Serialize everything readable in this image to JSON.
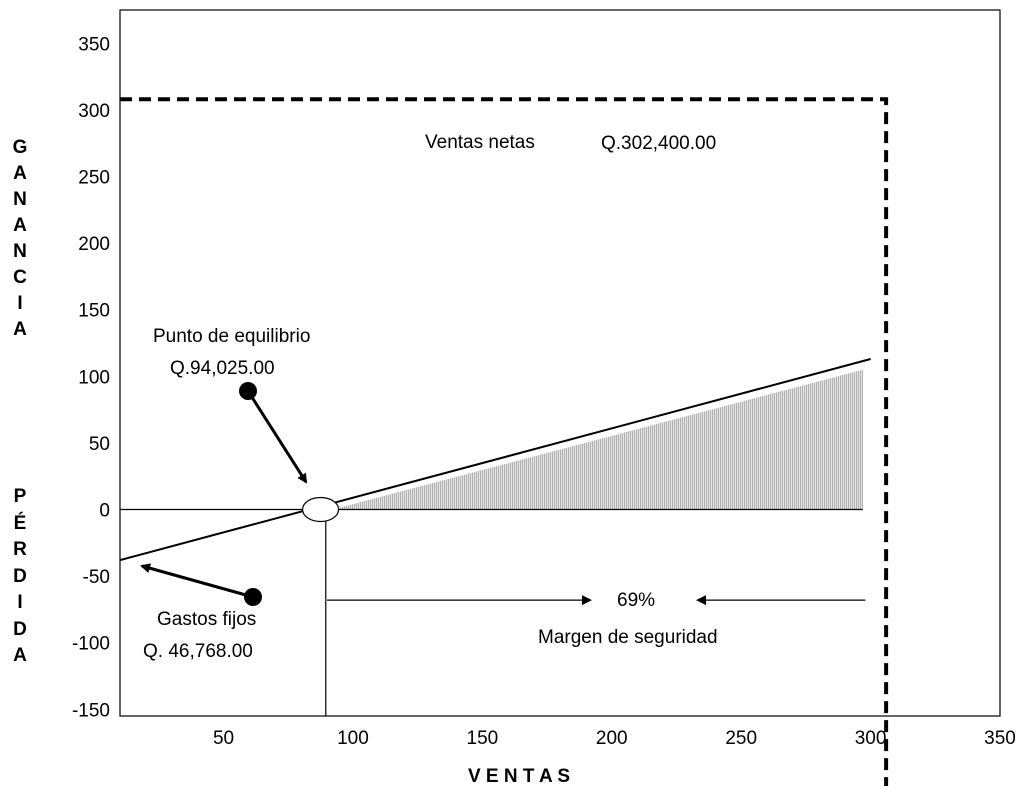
{
  "chart_data": {
    "type": "line",
    "title": "",
    "xlabel": "V E N T A S",
    "ylabel_top": [
      "G",
      "A",
      "N",
      "A",
      "N",
      "C",
      "I",
      "A"
    ],
    "ylabel_bottom": [
      "P",
      "É",
      "R",
      "D",
      "I",
      "D",
      "A"
    ],
    "xlim": [
      10,
      350
    ],
    "ylim": [
      -155,
      375
    ],
    "x_ticks": [
      50,
      100,
      150,
      200,
      250,
      300,
      350
    ],
    "y_ticks": [
      350,
      300,
      250,
      200,
      150,
      100,
      50,
      0,
      -50,
      -100,
      -150
    ],
    "grid": false,
    "series": [
      {
        "x": [
          10,
          300
        ],
        "y": [
          -38,
          113
        ]
      }
    ],
    "break_even": {
      "x": 87.5,
      "y": 0
    },
    "shaded_region": {
      "x_start": 92,
      "x_end": 297,
      "y_end": 105
    },
    "net_sales_marker": {
      "x": 306,
      "y": 308
    },
    "safety_margin_arrow": {
      "from_x": 90,
      "to_x": 298,
      "y": -68
    },
    "annotations": {
      "ventas_label": "Ventas netas",
      "ventas_value": "Q.302,400.00",
      "punto_label": "Punto de equilibrio",
      "punto_value": "Q.94,025.00",
      "gastos_label": "Gastos fijos",
      "gastos_value": "Q. 46,768.00",
      "margen_pct": "69%",
      "margen_label": "Margen de seguridad"
    }
  }
}
